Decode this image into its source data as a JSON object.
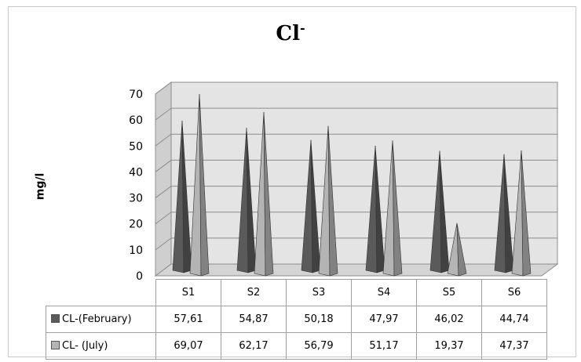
{
  "chart_data": {
    "type": "bar",
    "title_main": "Cl",
    "title_sup": "-",
    "ylabel": "mg/l",
    "ylim": [
      0,
      70
    ],
    "yticks": [
      0,
      10,
      20,
      30,
      40,
      50,
      60,
      70
    ],
    "categories": [
      "S1",
      "S2",
      "S3",
      "S4",
      "S5",
      "S6"
    ],
    "series": [
      {
        "name": "CL-(February)",
        "values": [
          57.61,
          54.87,
          50.18,
          47.97,
          46.02,
          44.74
        ],
        "labels": [
          "57,61",
          "54,87",
          "50,18",
          "47,97",
          "46,02",
          "44,74"
        ],
        "color": "#5a5a5a"
      },
      {
        "name": "CL- (July)",
        "values": [
          69.07,
          62.17,
          56.79,
          51.17,
          19.37,
          47.37
        ],
        "labels": [
          "69,07",
          "62,17",
          "56,79",
          "51,17",
          "19,37",
          "47,37"
        ],
        "color": "#b4b4b4"
      }
    ],
    "grid": true,
    "legend": "data-table"
  }
}
